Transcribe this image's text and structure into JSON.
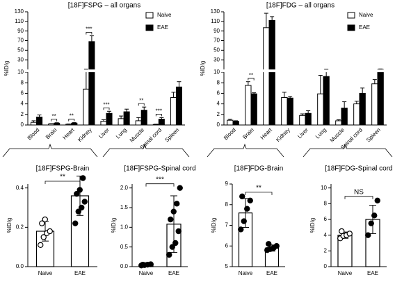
{
  "chart_data": [
    {
      "type": "bar",
      "title": "[18F]FSPG – all organs",
      "ylabel": "%ID/g",
      "categories": [
        "Blood",
        "Brain",
        "Heart",
        "Kidney",
        "Liver",
        "Lung",
        "Muscle",
        "Spinal cord",
        "Spleen"
      ],
      "series": [
        {
          "name": "Naive",
          "color": "#ffffff",
          "values": [
            0.5,
            0.2,
            0.15,
            6.8,
            0.7,
            1.2,
            0.8,
            0.1,
            5.2
          ],
          "errors": [
            0.3,
            0.05,
            0.05,
            4,
            0.3,
            0.5,
            0.6,
            0.05,
            1
          ]
        },
        {
          "name": "EAE",
          "color": "#000000",
          "values": [
            1.5,
            0.35,
            0.35,
            68,
            2.2,
            2.5,
            2.8,
            1.1,
            7.2
          ],
          "errors": [
            0.4,
            0.08,
            0.1,
            12,
            0.4,
            0.5,
            0.6,
            0.3,
            1
          ]
        }
      ],
      "ylim": [
        0,
        130
      ],
      "ybreak": 10,
      "yticks": [
        0,
        2,
        4,
        6,
        8,
        10,
        30,
        50,
        70,
        90,
        110,
        130
      ],
      "annotations": [
        {
          "text": "**",
          "category": "Brain"
        },
        {
          "text": "**",
          "category": "Heart"
        },
        {
          "text": "***",
          "category": "Kidney"
        },
        {
          "text": "***",
          "category": "Liver"
        },
        {
          "text": "**",
          "category": "Muscle"
        },
        {
          "text": "***",
          "category": "Spinal cord"
        }
      ],
      "legend": "top-right"
    },
    {
      "type": "bar",
      "title": "[18F]FDG – all organs",
      "ylabel": "%ID/g",
      "categories": [
        "Blood",
        "Brain",
        "Heart",
        "Kidney",
        "Liver",
        "Lung",
        "Muscle",
        "Spinal cord",
        "Spleen"
      ],
      "series": [
        {
          "name": "Naive",
          "color": "#ffffff",
          "values": [
            0.9,
            7.5,
            97,
            5.2,
            1.8,
            5.9,
            0.8,
            4.0,
            7.8
          ],
          "errors": [
            0.2,
            0.7,
            30,
            1,
            0.3,
            3.5,
            0.2,
            0.5,
            0.8
          ]
        },
        {
          "name": "EAE",
          "color": "#000000",
          "values": [
            0.7,
            5.9,
            112,
            5.1,
            2.2,
            9.2,
            3.2,
            6.0,
            10.2
          ],
          "errors": [
            0.1,
            0.2,
            8,
            0.3,
            0.5,
            1.5,
            1.2,
            1,
            0.8
          ]
        }
      ],
      "ylim": [
        0,
        130
      ],
      "ybreak": 10,
      "yticks": [
        0,
        2,
        4,
        6,
        8,
        10,
        30,
        50,
        70,
        90,
        110,
        130
      ],
      "annotations": [
        {
          "text": "**",
          "category": "Brain"
        }
      ],
      "legend": "top-right"
    },
    {
      "type": "bar",
      "title": "[18F]FSPG-Brain",
      "ylabel": "%ID/g",
      "categories": [
        "Naive",
        "EAE"
      ],
      "values": [
        0.18,
        0.36
      ],
      "errors": [
        0.05,
        0.1
      ],
      "points": [
        [
          0.11,
          0.15,
          0.17,
          0.18,
          0.22,
          0.24
        ],
        [
          0.22,
          0.28,
          0.3,
          0.33,
          0.37,
          0.39,
          0.45
        ]
      ],
      "markers": [
        "open",
        "filled"
      ],
      "color": "#ffffff",
      "ylim": [
        0,
        0.42
      ],
      "yticks": [
        {
          "value": 0,
          "label": "0.0"
        },
        0.2,
        0.4
      ],
      "annotation": "**"
    },
    {
      "type": "bar",
      "title": "[18F]FSPG-Spinal cord",
      "ylabel": "%ID/g",
      "categories": [
        "Naive",
        "EAE"
      ],
      "values": [
        0.05,
        1.08
      ],
      "errors": [
        0.02,
        0.72
      ],
      "points": [
        [
          0.03,
          0.04,
          0.05,
          0.06,
          0.05
        ],
        [
          0.3,
          0.5,
          0.6,
          0.9,
          1.2,
          1.4,
          1.6,
          2.0
        ]
      ],
      "markers": [
        "filled",
        "filled"
      ],
      "color": "#ffffff",
      "ylim": [
        0,
        2.1
      ],
      "yticks": [
        {
          "value": 0,
          "label": "0.0"
        },
        0.5,
        {
          "value": 1,
          "label": "1.0"
        },
        1.5,
        {
          "value": 2,
          "label": "2.0"
        }
      ],
      "annotation": "***"
    },
    {
      "type": "bar",
      "title": "[18F]FDG-Brain",
      "ylabel": "%ID/g",
      "categories": [
        "Naive",
        "EAE"
      ],
      "values": [
        7.6,
        5.9
      ],
      "errors": [
        0.7,
        0.15
      ],
      "points": [
        [
          6.8,
          7.2,
          7.8,
          8.2,
          8.4
        ],
        [
          5.8,
          5.85,
          5.9,
          6.0,
          6.1
        ]
      ],
      "markers": [
        "filled",
        "filled"
      ],
      "color": "#ffffff",
      "ylim": [
        5,
        9
      ],
      "yticks": [
        5,
        6,
        7,
        8,
        9
      ],
      "annotation": "**"
    },
    {
      "type": "bar",
      "title": "[18F]FDG-Spinal cord",
      "ylabel": "%ID/g",
      "categories": [
        "Naive",
        "EAE"
      ],
      "values": [
        4.0,
        6.0
      ],
      "errors": [
        0.4,
        1.8
      ],
      "points": [
        [
          3.6,
          3.9,
          4.0,
          4.2,
          4.5
        ],
        [
          4.0,
          5.5,
          6.5,
          8.4
        ]
      ],
      "markers": [
        "open",
        "filled"
      ],
      "color": "#ffffff",
      "ylim": [
        0,
        10.5
      ],
      "yticks": [
        0,
        2,
        4,
        6,
        8,
        10
      ],
      "annotation": "NS"
    }
  ]
}
